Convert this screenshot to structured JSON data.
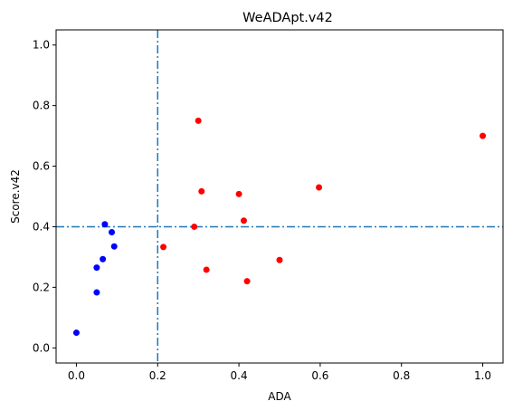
{
  "chart_data": {
    "type": "scatter",
    "title": "WeADApt.v42",
    "xlabel": "ADA",
    "ylabel": "Score.v42",
    "xlim": [
      -0.05,
      1.05
    ],
    "ylim": [
      -0.05,
      1.05
    ],
    "xticks": [
      0.0,
      0.2,
      0.4,
      0.6,
      0.8,
      1.0
    ],
    "yticks": [
      0.0,
      0.2,
      0.4,
      0.6,
      0.8,
      1.0
    ],
    "xtick_labels": [
      "0.0",
      "0.2",
      "0.4",
      "0.6",
      "0.8",
      "1.0"
    ],
    "ytick_labels": [
      "0.0",
      "0.2",
      "0.4",
      "0.6",
      "0.8",
      "1.0"
    ],
    "grid": false,
    "reference_lines": [
      {
        "orientation": "vertical",
        "value": 0.2,
        "style": "dashdot",
        "color": "#1f77b4"
      },
      {
        "orientation": "horizontal",
        "value": 0.4,
        "style": "dashdot",
        "color": "#1f77b4"
      }
    ],
    "series": [
      {
        "color": "#0000ff",
        "points": [
          {
            "x": 0.0,
            "y": 0.05
          },
          {
            "x": 0.05,
            "y": 0.183
          },
          {
            "x": 0.05,
            "y": 0.265
          },
          {
            "x": 0.065,
            "y": 0.293
          },
          {
            "x": 0.07,
            "y": 0.408
          },
          {
            "x": 0.087,
            "y": 0.382
          },
          {
            "x": 0.093,
            "y": 0.335
          }
        ]
      },
      {
        "color": "#ff0000",
        "points": [
          {
            "x": 0.214,
            "y": 0.333
          },
          {
            "x": 0.29,
            "y": 0.4
          },
          {
            "x": 0.3,
            "y": 0.75
          },
          {
            "x": 0.308,
            "y": 0.517
          },
          {
            "x": 0.32,
            "y": 0.258
          },
          {
            "x": 0.4,
            "y": 0.508
          },
          {
            "x": 0.412,
            "y": 0.42
          },
          {
            "x": 0.42,
            "y": 0.22
          },
          {
            "x": 0.5,
            "y": 0.29
          },
          {
            "x": 0.597,
            "y": 0.53
          },
          {
            "x": 1.0,
            "y": 0.7
          }
        ]
      }
    ]
  }
}
